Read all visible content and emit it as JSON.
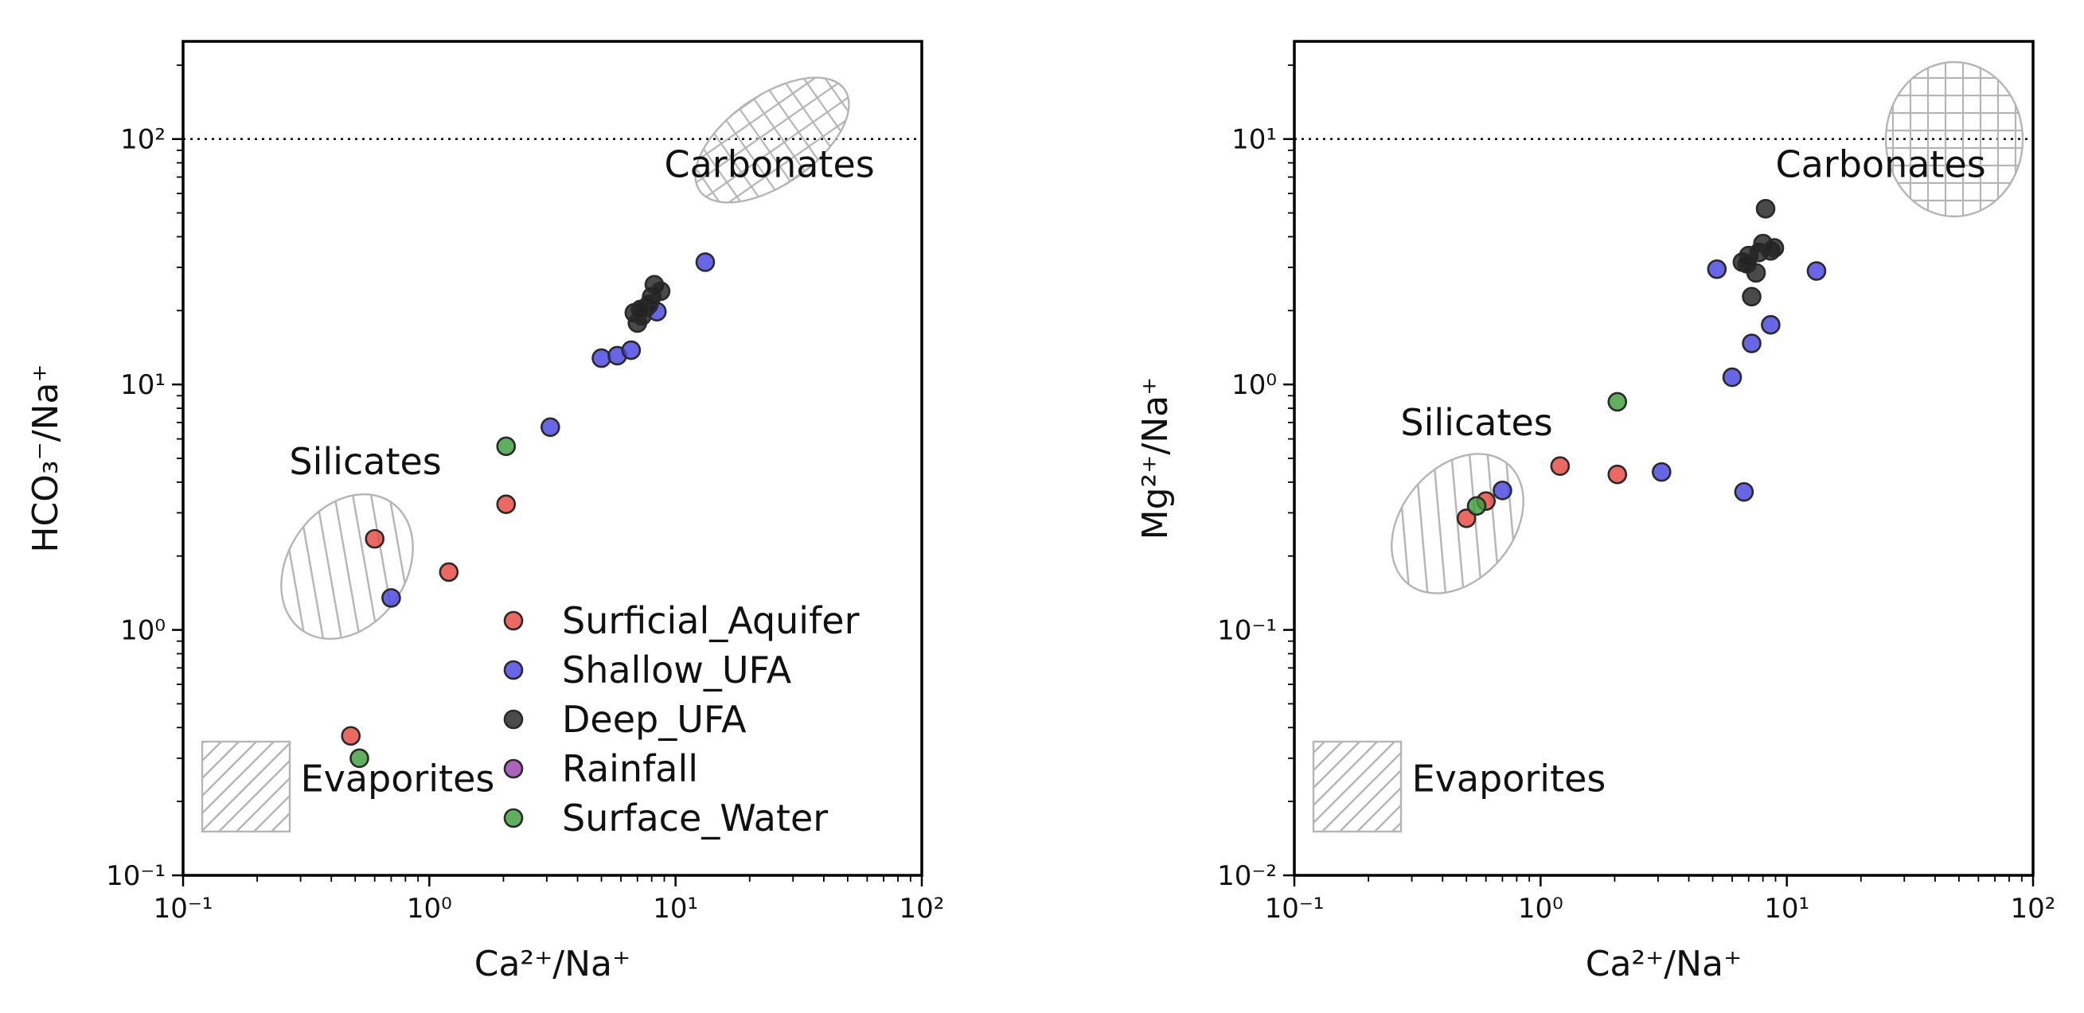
{
  "chart_data": [
    {
      "type": "scatter",
      "xscale": "log",
      "yscale": "log",
      "xlabel": "Ca²⁺/Na⁺",
      "ylabel": "HCO₃⁻/Na⁺",
      "xlim": [
        0.1,
        100
      ],
      "ylim": [
        0.1,
        250
      ],
      "xticks": [
        0.1,
        1,
        10,
        100
      ],
      "xtick_labels": [
        "10⁻¹",
        "10⁰",
        "10¹",
        "10²"
      ],
      "yticks": [
        0.1,
        1,
        10,
        100
      ],
      "ytick_labels": [
        "10⁻¹",
        "10⁰",
        "10¹",
        "10²"
      ],
      "reference_line": 100,
      "grid": false,
      "legend": "lower-right",
      "regions": [
        {
          "name": "Carbonates",
          "shape": "ellipse",
          "hatch": "grid",
          "cx": 40,
          "cy": 100,
          "label_x": 9,
          "label_y": 70
        },
        {
          "name": "Silicates",
          "shape": "ellipse",
          "hatch": "diagonal-back",
          "cx": 0.4,
          "cy": 2,
          "label_x": 0.27,
          "label_y": 4.3
        },
        {
          "name": "Evaporites",
          "shape": "box",
          "hatch": "diagonal",
          "x0": 0.12,
          "x1": 0.27,
          "y0": 0.15,
          "y1": 0.35,
          "label_x": 0.3,
          "label_y": 0.22
        }
      ],
      "series": [
        {
          "name": "Surficial_Aquifer",
          "color": "#e8483f",
          "points": [
            [
              0.6,
              2.35
            ],
            [
              1.2,
              1.72
            ],
            [
              2.05,
              3.25
            ],
            [
              0.48,
              0.37
            ]
          ]
        },
        {
          "name": "Shallow_UFA",
          "color": "#4444e0",
          "points": [
            [
              0.7,
              1.35
            ],
            [
              3.1,
              6.7
            ],
            [
              5.0,
              12.8
            ],
            [
              5.8,
              13.1
            ],
            [
              6.6,
              13.8
            ],
            [
              8.4,
              19.8
            ],
            [
              13.2,
              31.5
            ]
          ]
        },
        {
          "name": "Deep_UFA",
          "color": "#222222",
          "points": [
            [
              6.8,
              19.6
            ],
            [
              7.0,
              17.8
            ],
            [
              7.3,
              19.0
            ],
            [
              7.6,
              20.6
            ],
            [
              7.8,
              21.2
            ],
            [
              8.0,
              22.8
            ],
            [
              8.2,
              25.5
            ],
            [
              8.7,
              24.0
            ],
            [
              7.2,
              20.2
            ]
          ]
        },
        {
          "name": "Rainfall",
          "color": "#9b3fb0",
          "points": []
        },
        {
          "name": "Surface_Water",
          "color": "#3c9e3c",
          "points": [
            [
              2.05,
              5.6
            ],
            [
              0.52,
              0.3
            ]
          ]
        }
      ]
    },
    {
      "type": "scatter",
      "xscale": "log",
      "yscale": "log",
      "xlabel": "Ca²⁺/Na⁺",
      "ylabel": "Mg²⁺/Na⁺",
      "xlim": [
        0.1,
        100
      ],
      "ylim": [
        0.01,
        25
      ],
      "xticks": [
        0.1,
        1,
        10,
        100
      ],
      "xtick_labels": [
        "10⁻¹",
        "10⁰",
        "10¹",
        "10²"
      ],
      "yticks": [
        0.01,
        0.1,
        1,
        10
      ],
      "ytick_labels": [
        "10⁻²",
        "10⁻¹",
        "10⁰",
        "10¹"
      ],
      "reference_line": 10,
      "grid": false,
      "regions": [
        {
          "name": "Carbonates",
          "shape": "ellipse",
          "hatch": "grid",
          "cx": 45,
          "cy": 10,
          "label_x": 9,
          "label_y": 7
        },
        {
          "name": "Silicates",
          "shape": "ellipse",
          "hatch": "diagonal-back",
          "cx": 0.55,
          "cy": 0.3,
          "label_x": 0.27,
          "label_y": 0.62
        },
        {
          "name": "Evaporites",
          "shape": "box",
          "hatch": "diagonal",
          "x0": 0.12,
          "x1": 0.27,
          "y0": 0.015,
          "y1": 0.035,
          "label_x": 0.3,
          "label_y": 0.022
        }
      ],
      "series": [
        {
          "name": "Surficial_Aquifer",
          "color": "#e8483f",
          "points": [
            [
              0.5,
              0.285
            ],
            [
              0.6,
              0.335
            ],
            [
              1.2,
              0.465
            ],
            [
              2.05,
              0.43
            ]
          ]
        },
        {
          "name": "Shallow_UFA",
          "color": "#4444e0",
          "points": [
            [
              0.7,
              0.37
            ],
            [
              3.1,
              0.44
            ],
            [
              5.2,
              2.95
            ],
            [
              6.0,
              1.07
            ],
            [
              6.7,
              0.365
            ],
            [
              7.2,
              1.47
            ],
            [
              8.6,
              1.75
            ],
            [
              13.2,
              2.9
            ]
          ]
        },
        {
          "name": "Deep_UFA",
          "color": "#222222",
          "points": [
            [
              6.6,
              3.15
            ],
            [
              7.0,
              3.35
            ],
            [
              7.2,
              2.28
            ],
            [
              7.5,
              2.85
            ],
            [
              7.7,
              3.45
            ],
            [
              8.0,
              3.75
            ],
            [
              8.2,
              5.2
            ],
            [
              8.6,
              3.5
            ],
            [
              8.9,
              3.6
            ],
            [
              6.9,
              3.1
            ]
          ]
        },
        {
          "name": "Rainfall",
          "color": "#9b3fb0",
          "points": []
        },
        {
          "name": "Surface_Water",
          "color": "#3c9e3c",
          "points": [
            [
              2.05,
              0.85
            ],
            [
              0.55,
              0.32
            ]
          ]
        }
      ]
    }
  ]
}
